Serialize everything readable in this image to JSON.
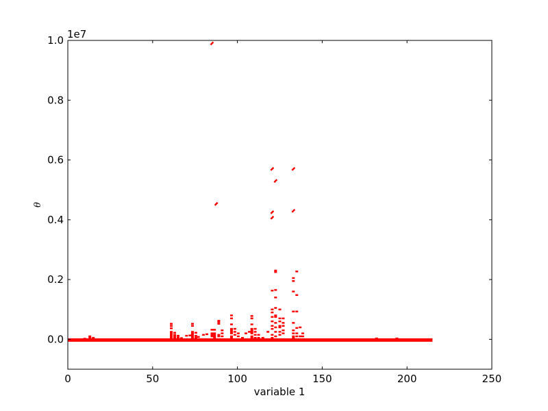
{
  "chart_data": {
    "type": "line",
    "title": "",
    "xlabel": "variable 1",
    "ylabel": "θ",
    "y_offset_label": "1e7",
    "xlim": [
      0,
      250
    ],
    "ylim": [
      -1000000,
      10000000
    ],
    "grid": false,
    "color": "#ff0000",
    "x_ticks": [
      "0",
      "50",
      "100",
      "150",
      "200",
      "250"
    ],
    "x_tick_values": [
      0,
      50,
      100,
      150,
      200,
      250
    ],
    "y_ticks": [
      "0.0",
      "0.2",
      "0.4",
      "0.6",
      "0.8",
      "1.0"
    ],
    "y_tick_values": [
      0,
      2000000,
      4000000,
      6000000,
      8000000,
      10000000
    ],
    "baseline": {
      "x": [
        0,
        215
      ],
      "y": 0
    },
    "dashes": [
      {
        "x": 10,
        "y": [
          20000
        ]
      },
      {
        "x": 13,
        "y": [
          100000,
          50000
        ]
      },
      {
        "x": 15,
        "y": [
          50000
        ]
      },
      {
        "x": 61,
        "y": [
          520000,
          450000,
          370000,
          250000,
          200000,
          150000,
          100000,
          50000
        ]
      },
      {
        "x": 63,
        "y": [
          220000,
          150000,
          100000,
          50000
        ]
      },
      {
        "x": 65,
        "y": [
          120000,
          60000
        ]
      },
      {
        "x": 67,
        "y": [
          40000
        ]
      },
      {
        "x": 70,
        "y": [
          120000
        ]
      },
      {
        "x": 72,
        "y": [
          130000
        ]
      },
      {
        "x": 73.5,
        "y": [
          520000,
          450000,
          250000,
          200000,
          150000,
          100000,
          50000
        ]
      },
      {
        "x": 75.5,
        "y": [
          220000,
          120000,
          60000
        ]
      },
      {
        "x": 77,
        "y": [
          80000
        ]
      },
      {
        "x": 80,
        "y": [
          150000
        ]
      },
      {
        "x": 82,
        "y": [
          170000
        ]
      },
      {
        "x": 85,
        "y": [
          9900000,
          320000,
          200000,
          150000,
          100000
        ]
      },
      {
        "x": 86.5,
        "y": [
          320000,
          200000,
          150000,
          100000,
          50000
        ]
      },
      {
        "x": 87.5,
        "y": [
          4530000
        ]
      },
      {
        "x": 89,
        "y": [
          620000,
          580000,
          520000,
          150000,
          100000
        ]
      },
      {
        "x": 91,
        "y": [
          300000,
          200000,
          100000
        ]
      },
      {
        "x": 96.5,
        "y": [
          800000,
          700000,
          500000,
          350000,
          300000,
          250000,
          200000,
          100000,
          50000
        ]
      },
      {
        "x": 98.5,
        "y": [
          350000,
          250000,
          150000
        ]
      },
      {
        "x": 100.5,
        "y": [
          200000,
          100000
        ]
      },
      {
        "x": 103,
        "y": [
          50000
        ]
      },
      {
        "x": 105,
        "y": [
          200000
        ]
      },
      {
        "x": 107,
        "y": [
          250000
        ]
      },
      {
        "x": 108.5,
        "y": [
          780000,
          700000,
          500000,
          350000,
          300000,
          250000,
          200000,
          100000,
          50000
        ]
      },
      {
        "x": 110.5,
        "y": [
          350000,
          250000,
          150000,
          50000
        ]
      },
      {
        "x": 112.5,
        "y": [
          150000,
          50000
        ]
      },
      {
        "x": 115,
        "y": [
          50000
        ]
      },
      {
        "x": 118,
        "y": [
          250000
        ]
      },
      {
        "x": 120.5,
        "y": [
          5700000,
          4250000,
          4070000,
          1630000,
          1000000,
          900000,
          750000,
          600000,
          450000,
          350000,
          150000,
          50000
        ]
      },
      {
        "x": 122.5,
        "y": [
          5300000,
          2300000,
          2250000,
          1650000,
          1400000,
          1050000,
          800000,
          750000,
          550000,
          400000,
          250000,
          100000
        ]
      },
      {
        "x": 125,
        "y": [
          1000000,
          700000,
          600000,
          450000,
          400000,
          250000,
          150000
        ]
      },
      {
        "x": 127,
        "y": [
          700000,
          550000,
          450000,
          300000,
          200000
        ]
      },
      {
        "x": 133,
        "y": [
          5700000,
          4300000,
          2050000,
          1950000,
          1600000,
          930000,
          550000,
          300000,
          200000,
          100000,
          50000
        ]
      },
      {
        "x": 135,
        "y": [
          2270000,
          1480000,
          930000,
          380000,
          200000,
          100000
        ]
      },
      {
        "x": 137,
        "y": [
          400000,
          100000
        ]
      },
      {
        "x": 138.5,
        "y": [
          200000,
          100000
        ]
      },
      {
        "x": 182,
        "y": [
          30000
        ]
      },
      {
        "x": 194,
        "y": [
          30000
        ]
      }
    ]
  }
}
